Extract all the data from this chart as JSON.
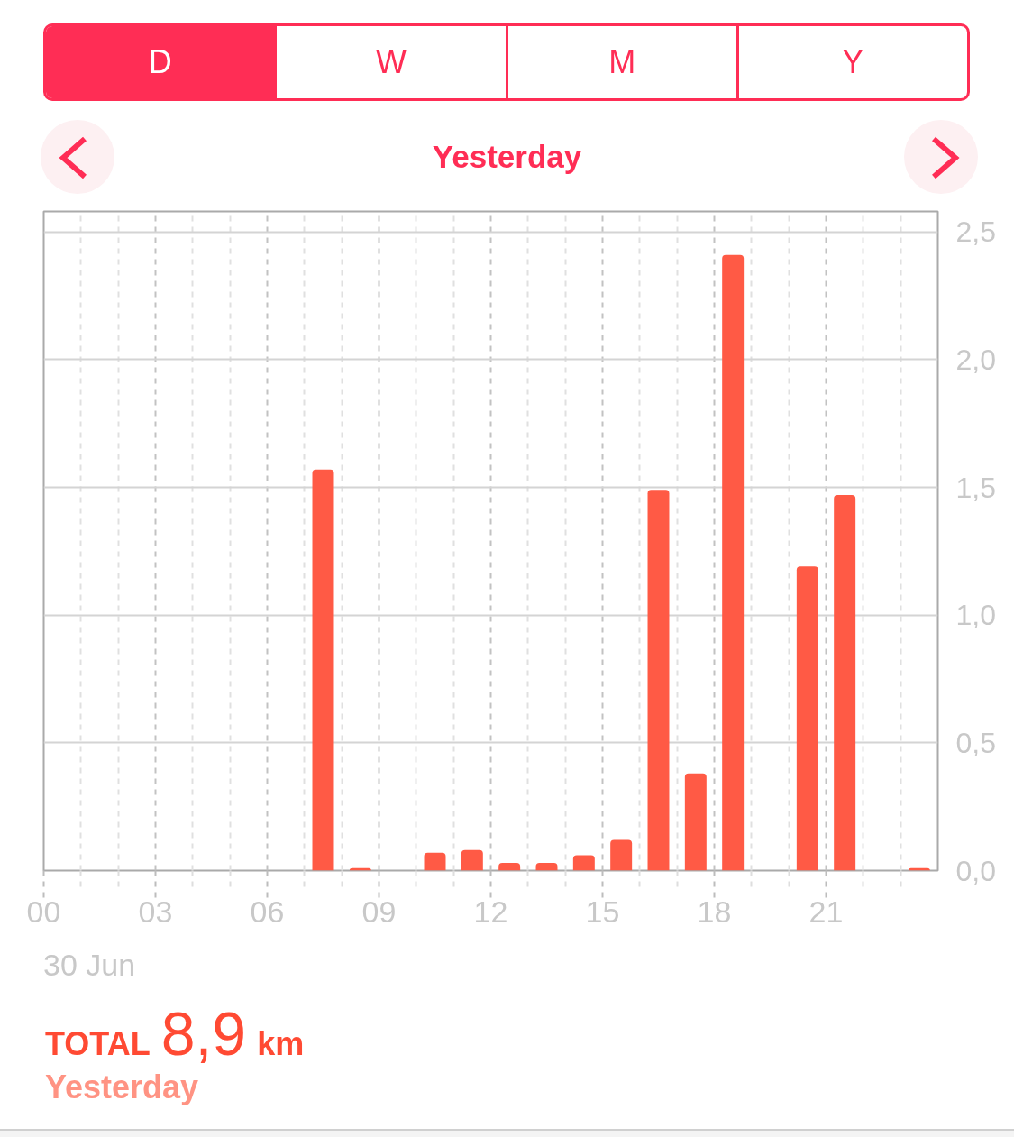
{
  "chart_data": {
    "type": "bar",
    "title": "Yesterday",
    "x": [
      7.5,
      8.5,
      10.5,
      11.5,
      12.5,
      13.5,
      14.5,
      15.5,
      16.5,
      17.5,
      18.5,
      20.5,
      21.5,
      23.5
    ],
    "values": [
      1.57,
      0.01,
      0.07,
      0.08,
      0.03,
      0.03,
      0.06,
      0.12,
      1.49,
      0.38,
      2.41,
      1.19,
      1.47,
      0.01
    ],
    "color": "#ff5a45",
    "xlim": [
      0,
      24
    ],
    "xticks": [
      {
        "value": 0,
        "label": "00"
      },
      {
        "value": 1,
        "label": null
      },
      {
        "value": 2,
        "label": null
      },
      {
        "value": 3,
        "label": "03"
      },
      {
        "value": 4,
        "label": null
      },
      {
        "value": 5,
        "label": null
      },
      {
        "value": 6,
        "label": "06"
      },
      {
        "value": 7,
        "label": null
      },
      {
        "value": 8,
        "label": null
      },
      {
        "value": 9,
        "label": "09"
      },
      {
        "value": 10,
        "label": null
      },
      {
        "value": 11,
        "label": null
      },
      {
        "value": 12,
        "label": "12"
      },
      {
        "value": 13,
        "label": null
      },
      {
        "value": 14,
        "label": null
      },
      {
        "value": 15,
        "label": "15"
      },
      {
        "value": 16,
        "label": null
      },
      {
        "value": 17,
        "label": null
      },
      {
        "value": 18,
        "label": "18"
      },
      {
        "value": 19,
        "label": null
      },
      {
        "value": 20,
        "label": null
      },
      {
        "value": 21,
        "label": "21"
      },
      {
        "value": 22,
        "label": null
      },
      {
        "value": 23,
        "label": null
      }
    ],
    "ylim": [
      0,
      2.58
    ],
    "yticks": [
      {
        "value": 0,
        "label": "0,0"
      },
      {
        "value": 0.5,
        "label": "0,5"
      },
      {
        "value": 1,
        "label": "1,0"
      },
      {
        "value": 1.5,
        "label": "1,5"
      },
      {
        "value": 2,
        "label": "2,0"
      },
      {
        "value": 2.5,
        "label": "2,5"
      }
    ],
    "grid": true,
    "annotations": [
      "D",
      "W",
      "M",
      "Y",
      "30 Jun",
      "TOTAL",
      "8,9",
      "km",
      "Yesterday"
    ]
  }
}
